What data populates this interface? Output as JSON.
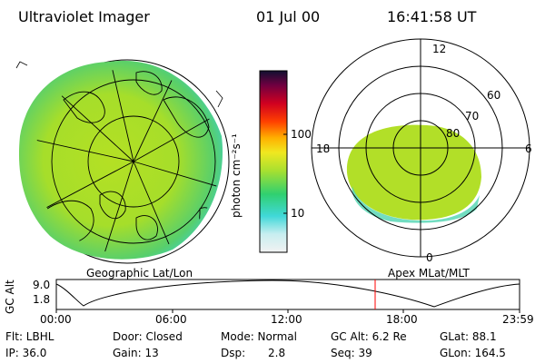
{
  "header": {
    "instrument": "Ultraviolet Imager",
    "date": "01 Jul 00",
    "time": "16:41:58 UT"
  },
  "colorbar": {
    "unit_label": "photon cm⁻²s⁻¹",
    "ticks": [
      "100",
      "10"
    ]
  },
  "geo_panel": {
    "label": "Geographic Lat/Lon"
  },
  "polar_panel": {
    "label": "Apex MLat/MLT",
    "mlt_labels": {
      "top": "12",
      "left": "18",
      "right": "6",
      "bottom": "0"
    },
    "lat_labels": [
      "60",
      "70",
      "80"
    ]
  },
  "altitude_plot": {
    "ylabel": "GC Alt",
    "y_ticks": [
      "9.0",
      "1.8"
    ],
    "x_ticks": [
      "00:00",
      "06:00",
      "12:00",
      "18:00",
      "23:59"
    ],
    "current_time_marker": "16:41:58",
    "marker_color": "#ff0000"
  },
  "info": {
    "filter": "Flt: LBHL",
    "door": "Door: Closed",
    "mode": "Mode: Normal",
    "gc_alt": "GC Alt: 6.2 Re",
    "glat": "GLat:  88.1",
    "ip": "IP: 36.0",
    "gain": "Gain: 13",
    "dsp_label": "Dsp:",
    "dsp_value": "2.8",
    "seq": "Seq: 39",
    "glon": "GLon: 164.5"
  }
}
